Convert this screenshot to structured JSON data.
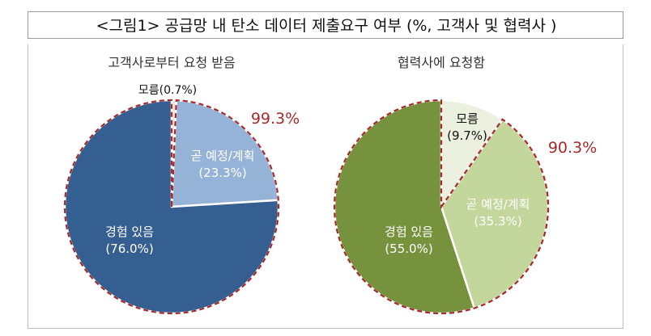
{
  "figure_title": "<그림1> 공급망 내 탄소 데이터 제출요구 여부 (%, 고객사 및 협력사 )",
  "colors": {
    "dark_blue": "#365f91",
    "light_blue": "#95b3d7",
    "pale_pink": "#f2dcdb",
    "dark_green": "#76923c",
    "light_green": "#c3d69b",
    "pale_green": "#ebf1de",
    "dashed_red": "#a52a2a"
  },
  "chart_data": [
    {
      "type": "pie",
      "title": "고객사로부터 요청 받음",
      "slices": [
        {
          "name": "모름",
          "value": 0.7,
          "label": "모름(0.7%)"
        },
        {
          "name": "곧 예정/계획",
          "value": 23.3,
          "label": "곧 예정/계획",
          "sublabel": "(23.3%)"
        },
        {
          "name": "경험 있음",
          "value": 76.0,
          "label": "경험 있음",
          "sublabel": "(76.0%)"
        }
      ],
      "annotation": "99.3%"
    },
    {
      "type": "pie",
      "title": "협력사에 요청함",
      "slices": [
        {
          "name": "모름",
          "value": 9.7,
          "label": "모름",
          "sublabel": "(9.7%)"
        },
        {
          "name": "곧 예정/계획",
          "value": 35.3,
          "label": "곧 예정/계획",
          "sublabel": "(35.3%)"
        },
        {
          "name": "경험 있음",
          "value": 55.0,
          "label": "경험 있음",
          "sublabel": "(55.0%)"
        }
      ],
      "annotation": "90.3%"
    }
  ]
}
